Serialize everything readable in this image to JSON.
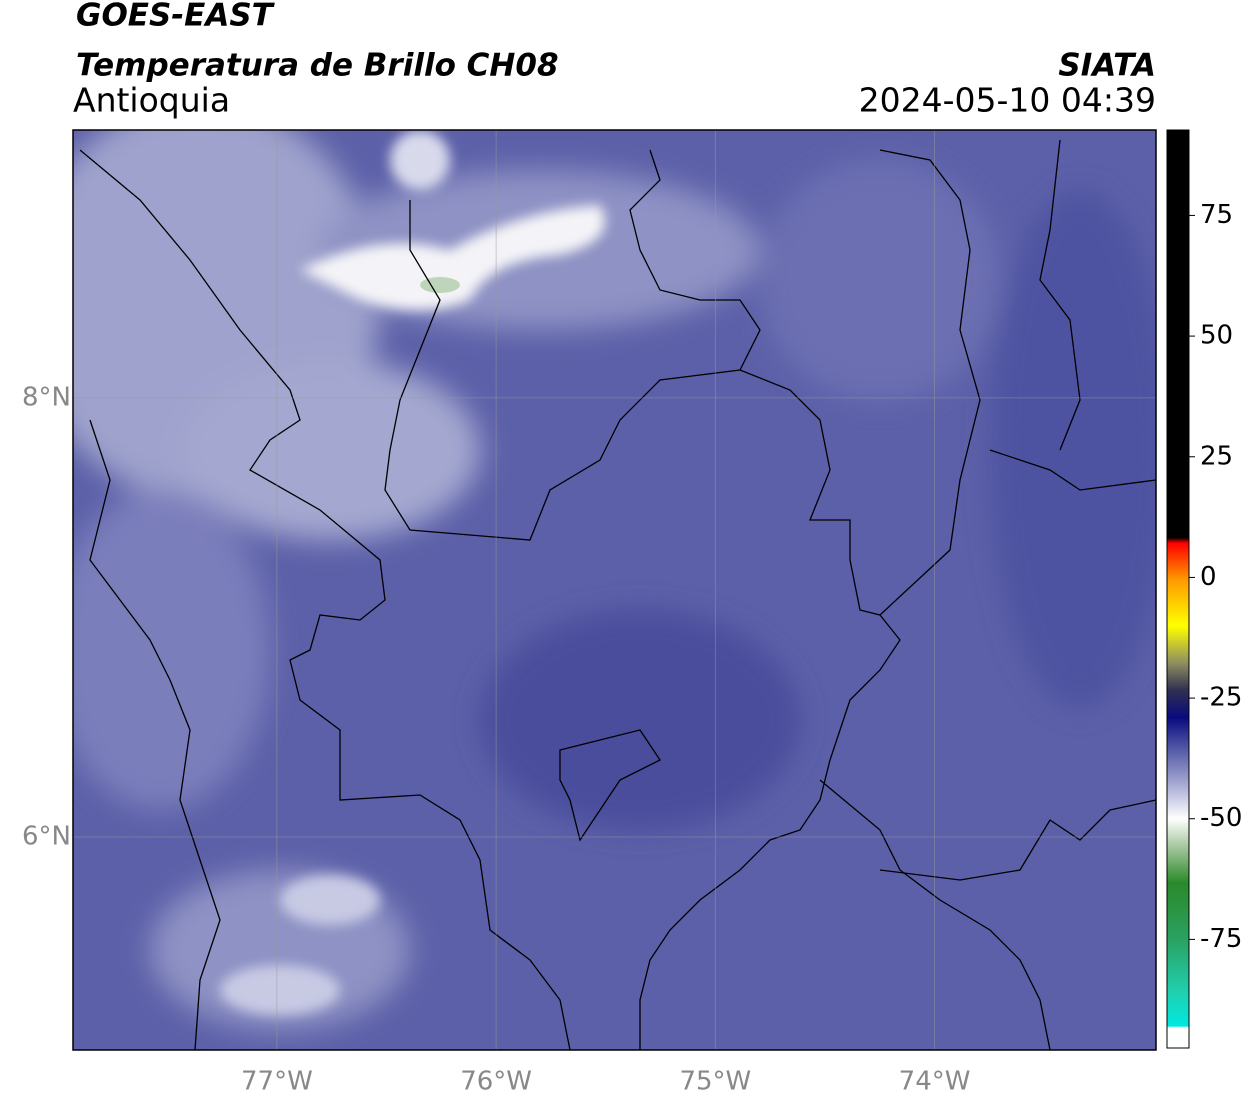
{
  "header": {
    "satellite": "GOES-EAST",
    "product": "Temperatura de Brillo CH08",
    "region": "Antioquia",
    "source": "SIATA",
    "datetime": "2024-05-10 04:39"
  },
  "map": {
    "lon_range": [
      -77.93,
      -72.99
    ],
    "lat_range": [
      5.03,
      9.22
    ],
    "lon_ticks": [
      {
        "value": -77,
        "label": "77°W"
      },
      {
        "value": -76,
        "label": "76°W"
      },
      {
        "value": -75,
        "label": "75°W"
      },
      {
        "value": -74,
        "label": "74°W"
      }
    ],
    "lat_ticks": [
      {
        "value": 8,
        "label": "8°N"
      },
      {
        "value": 6,
        "label": "6°N"
      }
    ]
  },
  "colorbar": {
    "range": [
      -97.5,
      92.7
    ],
    "ticks": [
      75,
      50,
      25,
      0,
      -25,
      -50,
      -75
    ]
  }
}
